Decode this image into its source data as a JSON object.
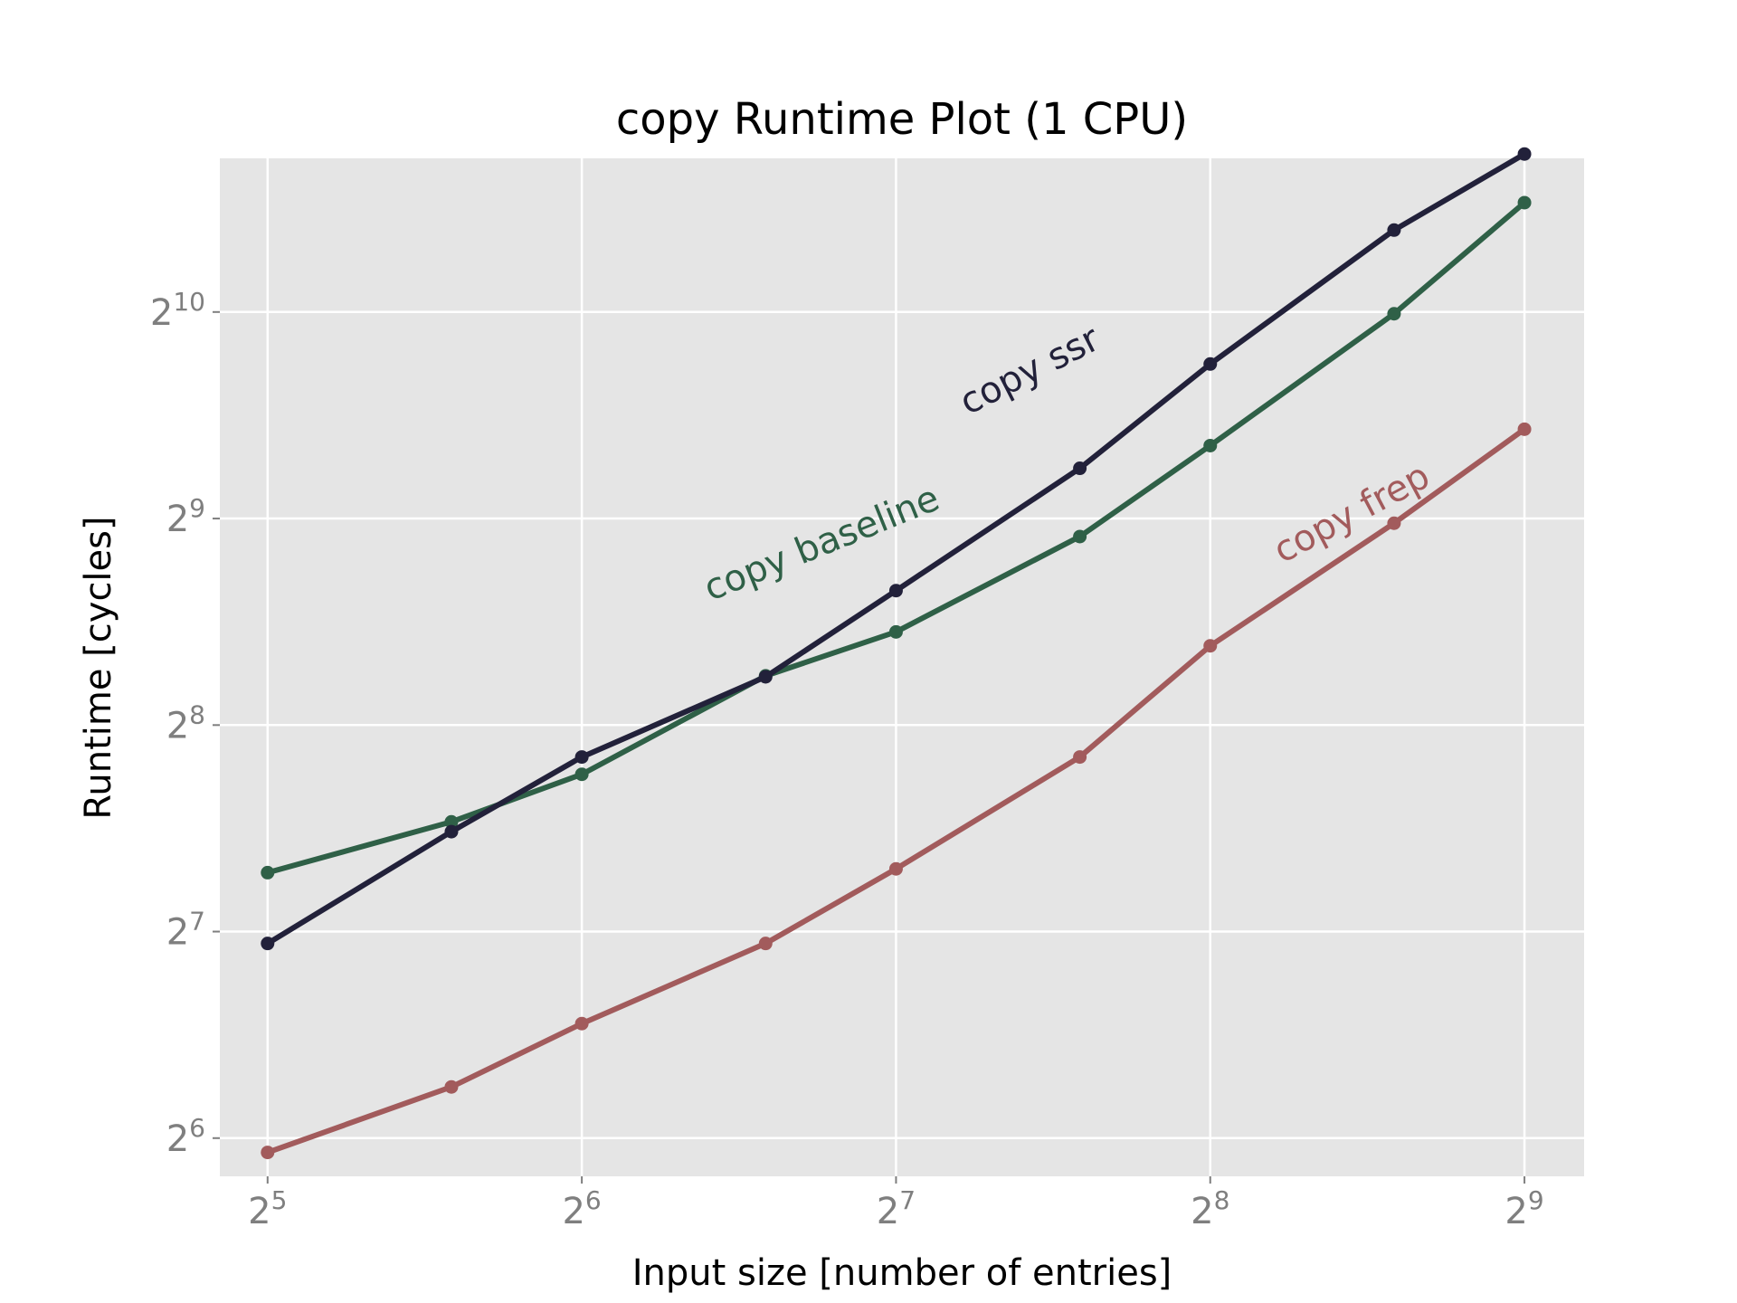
{
  "chart_data": {
    "type": "line",
    "title": "copy Runtime Plot (1 CPU)",
    "xlabel": "Input size [number of entries]",
    "ylabel": "Runtime [cycles]",
    "x_scale": "log2",
    "y_scale": "log2",
    "xlim": [
      28.8,
      584
    ],
    "ylim": [
      56.3,
      1715
    ],
    "grid": true,
    "background": "#e5e5e5",
    "grid_color": "#ffffff",
    "x_ticks": [
      {
        "base": "2",
        "exp": "5",
        "value": 32
      },
      {
        "base": "2",
        "exp": "6",
        "value": 64
      },
      {
        "base": "2",
        "exp": "7",
        "value": 128
      },
      {
        "base": "2",
        "exp": "8",
        "value": 256
      },
      {
        "base": "2",
        "exp": "9",
        "value": 512
      }
    ],
    "y_ticks": [
      {
        "base": "2",
        "exp": "6",
        "value": 64
      },
      {
        "base": "2",
        "exp": "7",
        "value": 128
      },
      {
        "base": "2",
        "exp": "8",
        "value": 256
      },
      {
        "base": "2",
        "exp": "9",
        "value": 512
      },
      {
        "base": "2",
        "exp": "10",
        "value": 1024
      }
    ],
    "x": [
      32,
      48,
      64,
      96,
      128,
      192,
      256,
      384,
      512
    ],
    "series": [
      {
        "name": "copy baseline",
        "color": "#2f6047",
        "values": [
          156,
          185,
          217,
          302,
          350,
          482,
          654,
          1018,
          1478
        ],
        "label_pos": {
          "x": 85,
          "y": 388,
          "angle": -22
        }
      },
      {
        "name": "copy ssr",
        "color": "#22213a",
        "values": [
          123,
          179,
          230,
          301,
          402,
          606,
          860,
          1348,
          1740
        ],
        "label_pos": {
          "x": 150,
          "y": 724,
          "angle": -27
        }
      },
      {
        "name": "copy frep",
        "color": "#a25b5c",
        "values": [
          61,
          76,
          94,
          123,
          158,
          230,
          334,
          504,
          691
        ],
        "label_pos": {
          "x": 300,
          "y": 440,
          "angle": -28
        }
      }
    ]
  }
}
